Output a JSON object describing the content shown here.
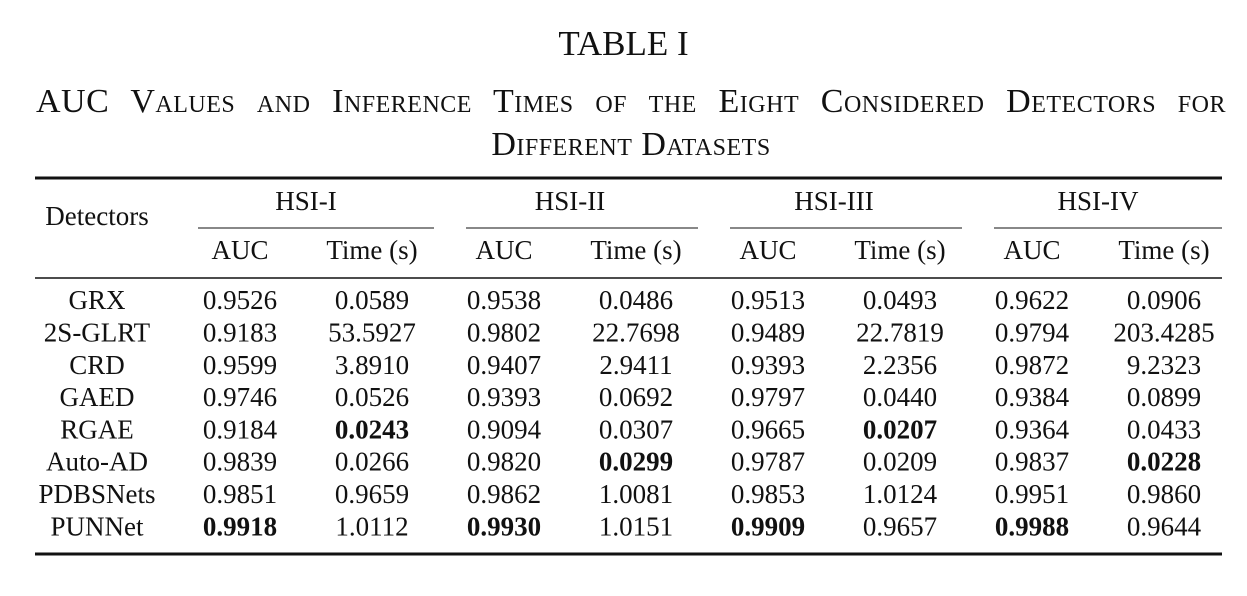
{
  "title": "TABLE I",
  "subtitle": "AUC Values and Inference Times of the Eight Considered Detectors for Different Datasets",
  "table": {
    "corner": "Detectors",
    "groups": [
      {
        "name": "HSI-I",
        "columns": [
          "AUC",
          "Time (s)"
        ]
      },
      {
        "name": "HSI-II",
        "columns": [
          "AUC",
          "Time (s)"
        ]
      },
      {
        "name": "HSI-III",
        "columns": [
          "AUC",
          "Time (s)"
        ]
      },
      {
        "name": "HSI-IV",
        "columns": [
          "AUC",
          "Time (s)"
        ]
      }
    ],
    "rows": [
      [
        "GRX",
        "0.9526",
        "0.0589",
        "0.9538",
        "0.0486",
        "0.9513",
        "0.0493",
        "0.9622",
        "0.0906"
      ],
      [
        "2S-GLRT",
        "0.9183",
        "53.5927",
        "0.9802",
        "22.7698",
        "0.9489",
        "22.7819",
        "0.9794",
        "203.4285"
      ],
      [
        "CRD",
        "0.9599",
        "3.8910",
        "0.9407",
        "2.9411",
        "0.9393",
        "2.2356",
        "0.9872",
        "9.2323"
      ],
      [
        "GAED",
        "0.9746",
        "0.0526",
        "0.9393",
        "0.0692",
        "0.9797",
        "0.0440",
        "0.9384",
        "0.0899"
      ],
      [
        "RGAE",
        "0.9184",
        "0.0243",
        "0.9094",
        "0.0307",
        "0.9665",
        "0.0207",
        "0.9364",
        "0.0433"
      ],
      [
        "Auto-AD",
        "0.9839",
        "0.0266",
        "0.9820",
        "0.0299",
        "0.9787",
        "0.0209",
        "0.9837",
        "0.0228"
      ],
      [
        "PDBSNets",
        "0.9851",
        "0.9659",
        "0.9862",
        "1.0081",
        "0.9853",
        "1.0124",
        "0.9951",
        "0.9860"
      ],
      [
        "PUNNet",
        "0.9918",
        "1.0112",
        "0.9930",
        "1.0151",
        "0.9909",
        "0.9657",
        "0.9988",
        "0.9644"
      ]
    ],
    "bold": [
      [
        4,
        2
      ],
      [
        4,
        6
      ],
      [
        5,
        4
      ],
      [
        5,
        8
      ],
      [
        7,
        1
      ],
      [
        7,
        3
      ],
      [
        7,
        5
      ],
      [
        7,
        7
      ]
    ]
  }
}
